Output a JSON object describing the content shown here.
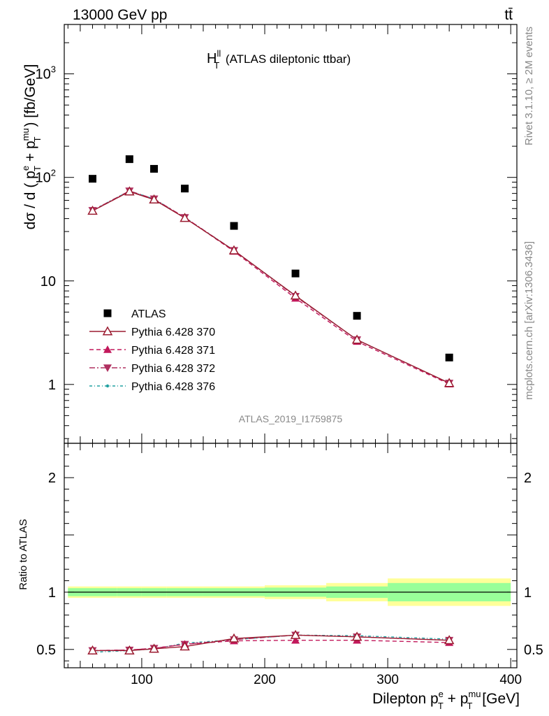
{
  "header": {
    "energy_label": "13000 GeV pp",
    "process_label": "tt̄"
  },
  "side_labels": {
    "rivet": "Rivet 3.1.10, ≥ 2M events",
    "mcplots": "mcplots.cern.ch [arXiv:1306.3436]"
  },
  "chart_data": {
    "type": "line",
    "title_main": "H",
    "title_sup": "ll",
    "title_sub": "T",
    "title_rest": " (ATLAS dileptonic ttbar)",
    "analysis_label": "ATLAS_2019_I1759875",
    "xlabel": {
      "main": "Dilepton p",
      "sup1": "e",
      "sub1": "T",
      "mid": " + p",
      "sup2": "mu",
      "sub2": "T",
      "rest": " [GeV]"
    },
    "ylabel_main": {
      "pre": "dσ / d ( p",
      "sup1": "e",
      "sub1": "T",
      "mid": " + p",
      "sup2": "mu",
      "sub2": "T",
      "rest": " ) [fb/GeV]"
    },
    "ylabel_ratio": "Ratio to ATLAS",
    "xlim": [
      37,
      405
    ],
    "ylim_main": [
      0.27,
      3000
    ],
    "ylim_ratio": [
      0.34,
      2.3
    ],
    "y_scale_main": "log",
    "x_ticks": [
      "100",
      "200",
      "300",
      "400"
    ],
    "y_ticks_main": [
      {
        "base": "10",
        "exp": "3"
      },
      {
        "base": "10",
        "exp": "2"
      },
      {
        "base": "10",
        "exp": ""
      },
      {
        "base": "1",
        "exp": ""
      }
    ],
    "y_ticks_ratio": [
      "2",
      "1",
      "0.5"
    ],
    "bins": [
      [
        40,
        80
      ],
      [
        80,
        100
      ],
      [
        100,
        120
      ],
      [
        120,
        150
      ],
      [
        150,
        200
      ],
      [
        200,
        250
      ],
      [
        250,
        300
      ],
      [
        300,
        400
      ]
    ],
    "x": [
      60,
      90,
      110,
      135,
      175,
      225,
      275,
      350
    ],
    "data": {
      "name": "ATLAS",
      "values": [
        97,
        150,
        121,
        78,
        34,
        11.8,
        4.6,
        1.82
      ],
      "band_inner": [
        0.035,
        0.035,
        0.035,
        0.035,
        0.035,
        0.04,
        0.05,
        0.08
      ],
      "band_outer": [
        0.05,
        0.05,
        0.05,
        0.05,
        0.05,
        0.06,
        0.08,
        0.12
      ]
    },
    "series": [
      {
        "name": "Pythia 6.428 370",
        "color": "#9b1b30",
        "dash": "",
        "marker": "triangle-up-open",
        "values": [
          47.5,
          73,
          61,
          40.5,
          19.7,
          7.2,
          2.7,
          1.03
        ],
        "ratio": [
          0.49,
          0.49,
          0.505,
          0.525,
          0.595,
          0.625,
          0.61,
          0.58
        ]
      },
      {
        "name": "Pythia 6.428 371",
        "color": "#c2185b",
        "dash": "6,4",
        "marker": "triangle-up-filled",
        "values": [
          47.5,
          73,
          61,
          41,
          19.3,
          6.8,
          2.6,
          1.01
        ],
        "ratio": [
          0.49,
          0.495,
          0.51,
          0.545,
          0.575,
          0.58,
          0.58,
          0.56
        ]
      },
      {
        "name": "Pythia 6.428 372",
        "color": "#b03060",
        "dash": "8,3,2,3",
        "marker": "triangle-down-filled",
        "values": [
          48,
          74,
          62,
          41,
          19.7,
          7.1,
          2.7,
          1.03
        ],
        "ratio": [
          0.49,
          0.495,
          0.51,
          0.545,
          0.585,
          0.625,
          0.61,
          0.58
        ]
      },
      {
        "name": "Pythia 6.428 376",
        "color": "#20a0a0",
        "dash": "4,3,1,3",
        "marker": "dot",
        "values": [
          48,
          74,
          62,
          41,
          19.7,
          7.2,
          2.7,
          1.03
        ],
        "ratio": [
          0.475,
          0.49,
          0.505,
          0.555,
          0.585,
          0.625,
          0.62,
          0.59
        ]
      }
    ],
    "legend_placement": "bottom-left",
    "grid": false
  }
}
